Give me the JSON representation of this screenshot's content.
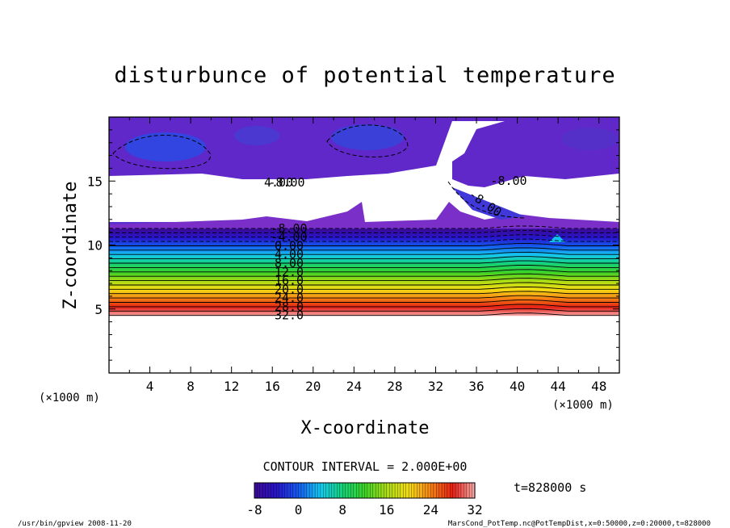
{
  "chart_data": {
    "type": "heatmap",
    "title": "disturbunce of potential temperature",
    "xlabel": "X-coordinate",
    "ylabel": "Z-coordinate",
    "x_unit": "(×1000 m)",
    "z_unit": "(×1000 m)",
    "xlim": [
      0,
      50
    ],
    "zlim": [
      0,
      20
    ],
    "x_ticks": [
      4,
      8,
      12,
      16,
      20,
      24,
      28,
      32,
      36,
      40,
      44,
      48
    ],
    "z_ticks": [
      5,
      10,
      15
    ],
    "contour_interval_text": "CONTOUR INTERVAL = 2.000E+00",
    "time_text": "t=828000 s",
    "colorbar": {
      "min": -8,
      "max": 32,
      "ticks": [
        -8,
        0,
        8,
        16,
        24,
        32
      ]
    },
    "contour_labels": [
      "-8.00",
      "-4.00",
      "0.00",
      "4.00",
      "8.00",
      "12.0",
      "16.0",
      "20.0",
      "24.0",
      "28.0",
      "32.0"
    ],
    "upper_labels": [
      "4.00",
      "-8.00",
      "-8.00",
      "-8.00"
    ],
    "grid": false,
    "colors": {
      "purple": "#6a1fc4",
      "blue": "#1f2fd8",
      "cyan": "#10c8f0",
      "green": "#30d040",
      "yellow": "#f0e020",
      "red": "#e82010",
      "pink": "#f4a0a0"
    }
  },
  "footer": {
    "left": "/usr/bin/gpview   2008-11-20",
    "right": "MarsCond_PotTemp.nc@PotTempDist,x=0:50000,z=0:20000,t=828000"
  }
}
